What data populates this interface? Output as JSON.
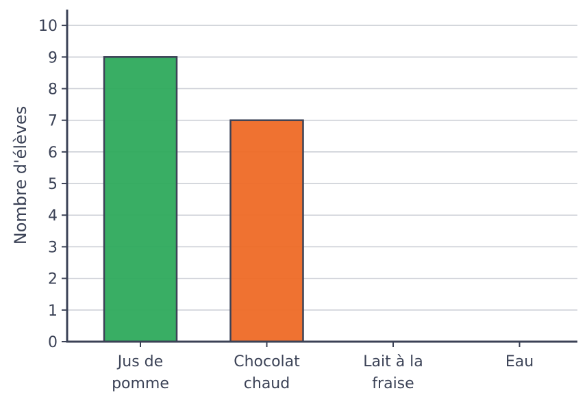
{
  "chart_data": {
    "type": "bar",
    "categories": [
      [
        "Jus de",
        "pomme"
      ],
      [
        "Chocolat",
        "chaud"
      ],
      [
        "Lait à la",
        "fraise"
      ],
      [
        "Eau"
      ]
    ],
    "values": [
      9,
      7,
      0,
      0
    ],
    "bar_colors": [
      "#2eaa5c",
      "#ee6a26",
      "#cccccc",
      "#cccccc"
    ],
    "xlabel": "",
    "ylabel": "Nombre d'élèves",
    "ylim": [
      0,
      10.5
    ],
    "yticks": [
      0,
      1,
      2,
      3,
      4,
      5,
      6,
      7,
      8,
      9,
      10
    ],
    "grid": true,
    "colors": {
      "axis": "#3b4256",
      "grid": "#cccfd6",
      "bar_edge": "#3b4256"
    }
  }
}
